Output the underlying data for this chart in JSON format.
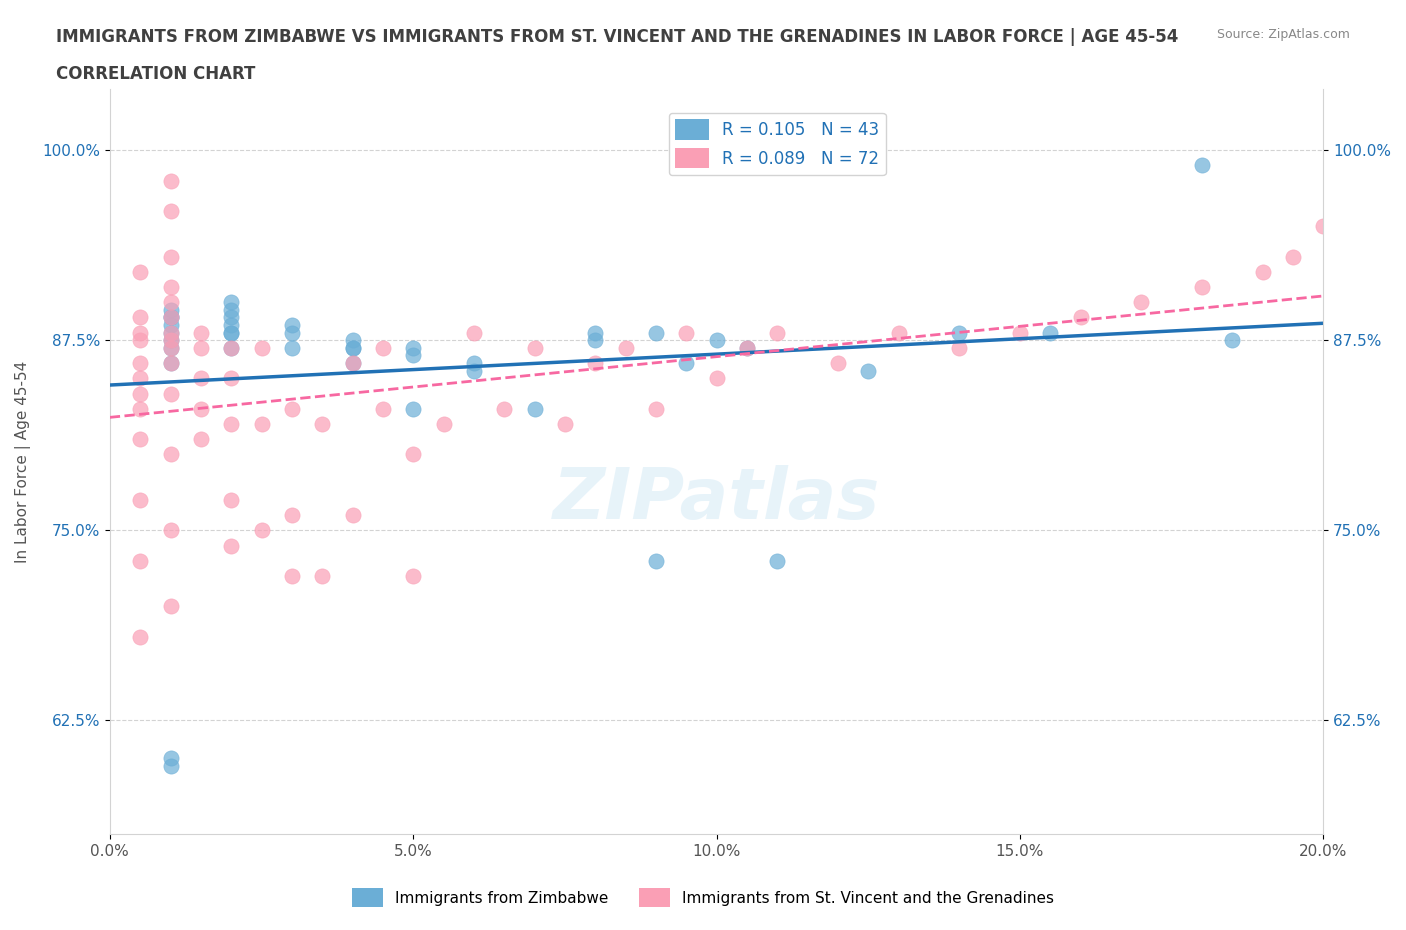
{
  "title_line1": "IMMIGRANTS FROM ZIMBABWE VS IMMIGRANTS FROM ST. VINCENT AND THE GRENADINES IN LABOR FORCE | AGE 45-54",
  "title_line2": "CORRELATION CHART",
  "source_text": "Source: ZipAtlas.com",
  "xlabel": "",
  "ylabel": "In Labor Force | Age 45-54",
  "xlim": [
    0.0,
    0.2
  ],
  "ylim": [
    0.55,
    1.04
  ],
  "yticks": [
    0.625,
    0.75,
    0.875,
    1.0
  ],
  "ytick_labels": [
    "62.5%",
    "75.0%",
    "87.5%",
    "100.0%"
  ],
  "xticks": [
    0.0,
    0.05,
    0.1,
    0.15,
    0.2
  ],
  "xtick_labels": [
    "0.0%",
    "5.0%",
    "10.0%",
    "15.0%",
    "20.0%"
  ],
  "color_zimbabwe": "#6baed6",
  "color_stvincent": "#fa9fb5",
  "line_color_zimbabwe": "#2171b5",
  "line_color_stvincent": "#f768a1",
  "R_zimbabwe": 0.105,
  "N_zimbabwe": 43,
  "R_stvincent": 0.089,
  "N_stvincent": 72,
  "watermark": "ZIPatlas",
  "legend_label_zimbabwe": "Immigrants from Zimbabwe",
  "legend_label_stvincent": "Immigrants from St. Vincent and the Grenadines",
  "zimbabwe_x": [
    0.01,
    0.01,
    0.01,
    0.01,
    0.01,
    0.01,
    0.01,
    0.01,
    0.01,
    0.01,
    0.02,
    0.02,
    0.02,
    0.02,
    0.02,
    0.02,
    0.02,
    0.03,
    0.03,
    0.03,
    0.04,
    0.04,
    0.04,
    0.04,
    0.05,
    0.05,
    0.05,
    0.06,
    0.06,
    0.07,
    0.08,
    0.08,
    0.09,
    0.09,
    0.095,
    0.1,
    0.105,
    0.11,
    0.125,
    0.14,
    0.155,
    0.18,
    0.185
  ],
  "zimbabwe_y": [
    0.6,
    0.595,
    0.86,
    0.87,
    0.875,
    0.88,
    0.89,
    0.885,
    0.89,
    0.895,
    0.87,
    0.88,
    0.88,
    0.885,
    0.89,
    0.895,
    0.9,
    0.87,
    0.88,
    0.885,
    0.86,
    0.87,
    0.87,
    0.875,
    0.83,
    0.865,
    0.87,
    0.855,
    0.86,
    0.83,
    0.875,
    0.88,
    0.88,
    0.73,
    0.86,
    0.875,
    0.87,
    0.73,
    0.855,
    0.88,
    0.88,
    0.99,
    0.875
  ],
  "stvincent_x": [
    0.005,
    0.005,
    0.005,
    0.005,
    0.005,
    0.005,
    0.005,
    0.005,
    0.005,
    0.005,
    0.005,
    0.005,
    0.01,
    0.01,
    0.01,
    0.01,
    0.01,
    0.01,
    0.01,
    0.01,
    0.01,
    0.01,
    0.01,
    0.01,
    0.01,
    0.01,
    0.015,
    0.015,
    0.015,
    0.015,
    0.015,
    0.02,
    0.02,
    0.02,
    0.02,
    0.02,
    0.025,
    0.025,
    0.025,
    0.03,
    0.03,
    0.03,
    0.035,
    0.035,
    0.04,
    0.04,
    0.045,
    0.045,
    0.05,
    0.05,
    0.055,
    0.06,
    0.065,
    0.07,
    0.075,
    0.08,
    0.085,
    0.09,
    0.095,
    0.1,
    0.105,
    0.11,
    0.12,
    0.13,
    0.14,
    0.15,
    0.16,
    0.17,
    0.18,
    0.19,
    0.195,
    0.2
  ],
  "stvincent_y": [
    0.68,
    0.73,
    0.77,
    0.81,
    0.83,
    0.84,
    0.85,
    0.86,
    0.875,
    0.88,
    0.89,
    0.92,
    0.7,
    0.75,
    0.8,
    0.84,
    0.86,
    0.87,
    0.875,
    0.88,
    0.89,
    0.9,
    0.91,
    0.93,
    0.96,
    0.98,
    0.81,
    0.83,
    0.85,
    0.87,
    0.88,
    0.74,
    0.77,
    0.82,
    0.85,
    0.87,
    0.75,
    0.82,
    0.87,
    0.72,
    0.76,
    0.83,
    0.72,
    0.82,
    0.76,
    0.86,
    0.83,
    0.87,
    0.72,
    0.8,
    0.82,
    0.88,
    0.83,
    0.87,
    0.82,
    0.86,
    0.87,
    0.83,
    0.88,
    0.85,
    0.87,
    0.88,
    0.86,
    0.88,
    0.87,
    0.88,
    0.89,
    0.9,
    0.91,
    0.92,
    0.93,
    0.95
  ]
}
